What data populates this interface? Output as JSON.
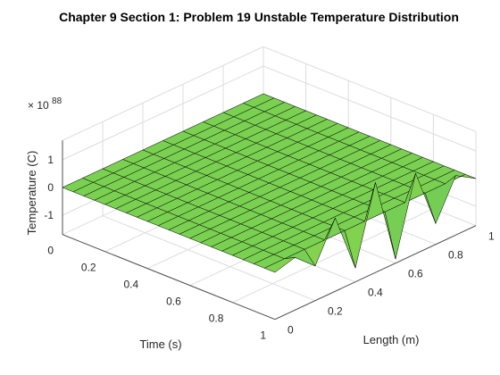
{
  "chart_data": {
    "type": "surface",
    "title": "Chapter 9 Section 1: Problem 19 Unstable Temperature Distribution",
    "xlabel": "Time (s)",
    "ylabel": "Length (m)",
    "zlabel": "Temperature (C)",
    "z_exponent_label": "× 10",
    "z_exponent": "88",
    "x_ticks": [
      "0",
      "0.2",
      "0.4",
      "0.6",
      "0.8",
      "1"
    ],
    "y_ticks": [
      "0",
      "0.2",
      "0.4",
      "0.6",
      "0.8",
      "1"
    ],
    "z_ticks": [
      "1",
      "0",
      "-1"
    ],
    "xlim": [
      0,
      1
    ],
    "ylim": [
      0,
      1
    ],
    "zlim": [
      -1.7,
      1.7
    ],
    "grid": true,
    "time_steps": 20,
    "space_steps": 10,
    "final_time_profile": {
      "length": [
        0,
        0.1,
        0.2,
        0.3,
        0.4,
        0.5,
        0.6,
        0.7,
        0.8,
        0.9,
        1.0
      ],
      "temperature_e88": [
        0,
        0.2,
        -0.45,
        0.95,
        -1.2,
        1.55,
        -1.55,
        1.2,
        -0.95,
        0.45,
        0
      ]
    },
    "colors": {
      "surface_low": "#2aa889",
      "surface_mid": "#7ad151",
      "surface_high": "#fde725",
      "edge": "#000000"
    }
  }
}
